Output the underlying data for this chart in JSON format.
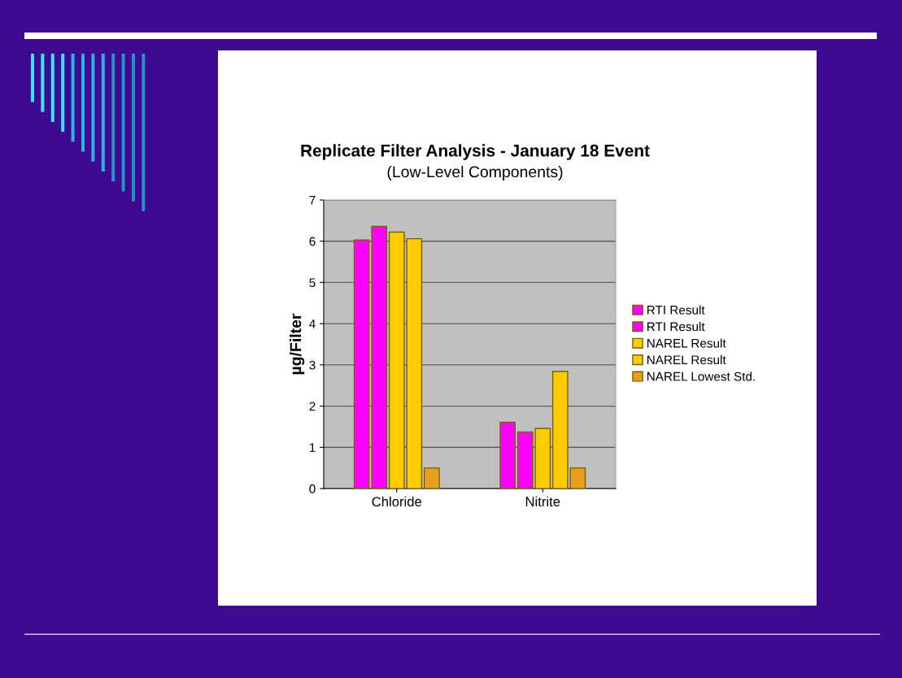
{
  "chart_data": {
    "type": "bar",
    "title": "Replicate Filter Analysis - January 18 Event",
    "subtitle": "(Low-Level Components)",
    "ylabel": "µg/Filter",
    "categories": [
      "Chloride",
      "Nitrite"
    ],
    "series": [
      {
        "name": "RTI Result",
        "color": "#ff00ff",
        "values": [
          6.03,
          1.61
        ]
      },
      {
        "name": "RTI Result",
        "color": "#ff00ff",
        "values": [
          6.36,
          1.37
        ]
      },
      {
        "name": "NAREL Result",
        "color": "#ffcc00",
        "values": [
          6.22,
          1.46
        ]
      },
      {
        "name": "NAREL Result",
        "color": "#ffcc00",
        "values": [
          6.06,
          2.84
        ]
      },
      {
        "name": "NAREL Lowest Std.",
        "color": "#e8a020",
        "values": [
          0.5,
          0.5
        ]
      }
    ],
    "ylim": [
      0,
      7
    ],
    "yticks": [
      0,
      1,
      2,
      3,
      4,
      5,
      6,
      7
    ],
    "grid": "y",
    "legend": "right"
  }
}
